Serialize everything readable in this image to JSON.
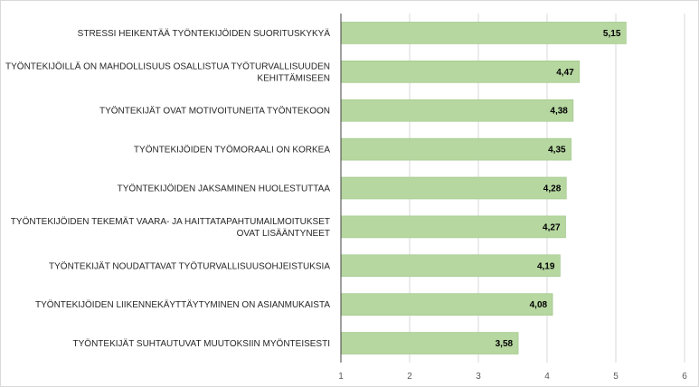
{
  "chart_data": {
    "type": "bar",
    "orientation": "horizontal",
    "categories": [
      [
        "STRESSI HEIKENTÄÄ TYÖNTEKIJÖIDEN SUORITUSKYKYÄ"
      ],
      [
        "TYÖNTEKIJÖILLÄ ON MAHDOLLISUUS OSALLISTUA TYÖTURVALLISUUDEN",
        "KEHITTÄMISEEN"
      ],
      [
        "TYÖNTEKIJÄT OVAT MOTIVOITUNEITA TYÖNTEKOON"
      ],
      [
        "TYÖNTEKIJÖIDEN TYÖMORAALI ON KORKEA"
      ],
      [
        "TYÖNTEKIJÖIDEN JAKSAMINEN HUOLESTUTTAA"
      ],
      [
        "TYÖNTEKIJÖIDEN TEKEMÄT VAARA- JA HAITTATAPAHTUMAILMOITUKSET",
        "OVAT LISÄÄNTYNEET"
      ],
      [
        "TYÖNTEKIJÄT NOUDATTAVAT TYÖTURVALLISUUSOHJEISTUKSIA"
      ],
      [
        "TYÖNTEKIJÖIDEN LIIKENNEKÄYTTÄYTYMINEN ON ASIANMUKAISTA"
      ],
      [
        "TYÖNTEKIJÄT SUHTAUTUVAT MUUTOKSIIN MYÖNTEISESTI"
      ]
    ],
    "values": [
      5.15,
      4.47,
      4.38,
      4.35,
      4.28,
      4.27,
      4.19,
      4.08,
      3.58
    ],
    "value_labels": [
      "5,15",
      "4,47",
      "4,38",
      "4,35",
      "4,28",
      "4,27",
      "4,19",
      "4,08",
      "3,58"
    ],
    "xlim": [
      1,
      6
    ],
    "ticks": [
      1,
      2,
      3,
      4,
      5,
      6
    ],
    "tick_labels": [
      "1",
      "2",
      "3",
      "4",
      "5",
      "6"
    ],
    "grid": "vertical",
    "legend": "none",
    "title": "",
    "xlabel": "",
    "ylabel": "",
    "colors": {
      "bar_fill": "#b6d7a0",
      "bar_stroke": "#9cc584",
      "grid": "#d9d9d9",
      "axis": "#404040"
    }
  }
}
